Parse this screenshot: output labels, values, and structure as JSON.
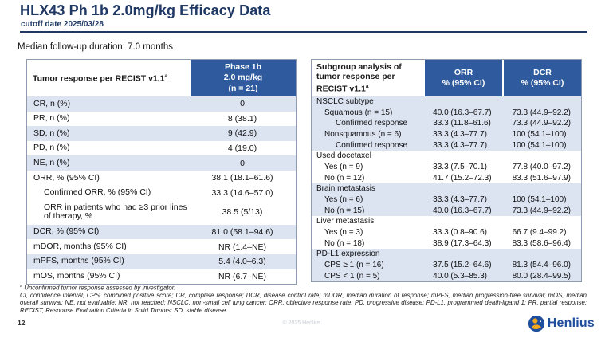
{
  "slide": {
    "title": "HLX43 Ph 1b 2.0mg/kg Efficacy Data",
    "subtitle": "cutoff date 2025/03/28",
    "followup": "Median follow-up duration: 7.0 months",
    "page_number": "12",
    "copyright": "© 2025 Henlius.",
    "logo_text": "Henlius"
  },
  "colors": {
    "title_navy": "#1F3864",
    "header_blue": "#2F5B9E",
    "row_light_blue": "#DCE4F2",
    "table_border": "#8E9BB3",
    "logo_blue": "#1F4E9C",
    "logo_orange": "#F5A81C"
  },
  "left_table": {
    "header": {
      "label": "Tumor response per RECIST v1.1",
      "label_sup": "a",
      "phase": "Phase 1b\n2.0 mg/kg\n(n = 21)"
    },
    "rows": [
      {
        "label": "CR, n (%)",
        "value": "0",
        "shade": true,
        "indent": 0
      },
      {
        "label": "PR, n (%)",
        "value": "8 (38.1)",
        "shade": false,
        "indent": 0
      },
      {
        "label": "SD, n (%)",
        "value": "9 (42.9)",
        "shade": true,
        "indent": 0
      },
      {
        "label": "PD, n (%)",
        "value": "4 (19.0)",
        "shade": false,
        "indent": 0
      },
      {
        "label": "NE, n (%)",
        "value": "0",
        "shade": true,
        "indent": 0
      },
      {
        "label": "ORR, % (95% CI)",
        "value": "38.1 (18.1–61.6)",
        "shade": false,
        "indent": 0
      },
      {
        "label": "Confirmed ORR, % (95% CI)",
        "value": "33.3 (14.6–57.0)",
        "shade": false,
        "indent": 1
      },
      {
        "label": "ORR in patients who had ≥3 prior lines of therapy, %",
        "value": "38.5 (5/13)",
        "shade": false,
        "indent": 1,
        "tall": true
      },
      {
        "label": "DCR, % (95% CI)",
        "value": "81.0 (58.1–94.6)",
        "shade": true,
        "indent": 0
      },
      {
        "label": "mDOR, months (95% CI)",
        "value": "NR (1.4–NE)",
        "shade": false,
        "indent": 0
      },
      {
        "label": "mPFS, months (95% CI)",
        "value": "5.4 (4.0–6.3)",
        "shade": true,
        "indent": 0
      },
      {
        "label": "mOS, months (95% CI)",
        "value": "NR (6.7–NE)",
        "shade": false,
        "indent": 0
      }
    ]
  },
  "right_table": {
    "header": {
      "label": "Subgroup analysis of tumor response per RECIST v1.1",
      "label_sup": "a",
      "orr": "ORR\n% (95% CI)",
      "dcr": "DCR\n% (95% CI)"
    },
    "rows": [
      {
        "label": "NSCLC subtype",
        "orr": "",
        "dcr": "",
        "shade": true,
        "indent": 0
      },
      {
        "label": "Squamous (n = 15)",
        "orr": "40.0 (16.3–67.7)",
        "dcr": "73.3 (44.9–92.2)",
        "shade": true,
        "indent": 1
      },
      {
        "label": "Confirmed response",
        "orr": "33.3 (11.8–61.6)",
        "dcr": "73.3 (44.9–92.2)",
        "shade": true,
        "indent": 2
      },
      {
        "label": "Nonsquamous (n = 6)",
        "orr": "33.3 (4.3–77.7)",
        "dcr": "100 (54.1–100)",
        "shade": true,
        "indent": 1
      },
      {
        "label": "Confirmed response",
        "orr": "33.3 (4.3–77.7)",
        "dcr": "100 (54.1–100)",
        "shade": true,
        "indent": 2
      },
      {
        "label": "Used docetaxel",
        "orr": "",
        "dcr": "",
        "shade": false,
        "indent": 0
      },
      {
        "label": "Yes (n = 9)",
        "orr": "33.3 (7.5–70.1)",
        "dcr": "77.8 (40.0–97.2)",
        "shade": false,
        "indent": 1
      },
      {
        "label": "No (n = 12)",
        "orr": "41.7 (15.2–72.3)",
        "dcr": "83.3 (51.6–97.9)",
        "shade": false,
        "indent": 1
      },
      {
        "label": "Brain metastasis",
        "orr": "",
        "dcr": "",
        "shade": true,
        "indent": 0
      },
      {
        "label": "Yes (n = 6)",
        "orr": "33.3 (4.3–77.7)",
        "dcr": "100 (54.1–100)",
        "shade": true,
        "indent": 1
      },
      {
        "label": "No (n = 15)",
        "orr": "40.0 (16.3–67.7)",
        "dcr": "73.3 (44.9–92.2)",
        "shade": true,
        "indent": 1
      },
      {
        "label": "Liver metastasis",
        "orr": "",
        "dcr": "",
        "shade": false,
        "indent": 0
      },
      {
        "label": "Yes (n = 3)",
        "orr": "33.3 (0.8–90.6)",
        "dcr": "66.7 (9.4–99.2)",
        "shade": false,
        "indent": 1
      },
      {
        "label": "No (n = 18)",
        "orr": "38.9 (17.3–64.3)",
        "dcr": "83.3 (58.6–96.4)",
        "shade": false,
        "indent": 1
      },
      {
        "label": "PD-L1 expression",
        "orr": "",
        "dcr": "",
        "shade": true,
        "indent": 0
      },
      {
        "label": "CPS ≥ 1 (n = 16)",
        "orr": "37.5 (15.2–64.6)",
        "dcr": "81.3 (54.4–96.0)",
        "shade": true,
        "indent": 1
      },
      {
        "label": "CPS < 1 (n = 5)",
        "orr": "40.0 (5.3–85.3)",
        "dcr": "80.0 (28.4–99.5)",
        "shade": true,
        "indent": 1
      }
    ]
  },
  "footnotes": {
    "marker": "a",
    "investigator_note": " Unconfirmed tumor response assessed by investigator.",
    "abbreviations": "CI, confidence interval; CPS, combined positive score; CR, complete response; DCR, disease control rate; mDOR, median duration of response; mPFS, median progression-free survival; mOS, median overall survival; NE, not evaluable; NR, not reached; NSCLC, non-small cell lung cancer; ORR, objective response rate; PD, progressive disease; PD-L1, programmed death-ligand 1; PR, partial response; RECIST, Response Evaluation Criteria in Solid Tumors; SD, stable disease."
  }
}
